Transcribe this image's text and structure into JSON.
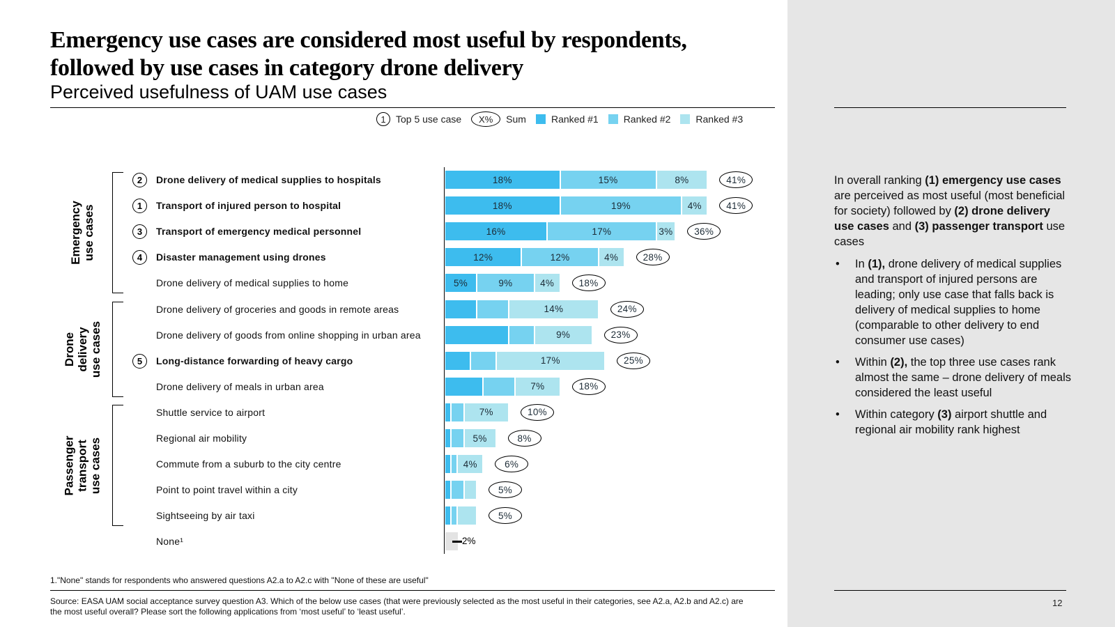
{
  "title": "Emergency use cases are considered most useful by respondents, followed by use cases in category drone delivery",
  "subtitle": "Perceived usefulness of UAM use cases",
  "legend": {
    "top5_symbol": "1",
    "top5_label": "Top 5 use case",
    "sum_symbol": "X%",
    "sum_label": "Sum",
    "ranked1": "Ranked #1",
    "ranked2": "Ranked #2",
    "ranked3": "Ranked #3"
  },
  "colors": {
    "ranked1": "#3dbcee",
    "ranked2": "#76d2f0",
    "ranked3": "#ade4ef",
    "none": "#e3e3e3",
    "right_panel": "#e6e6e6"
  },
  "groups": [
    {
      "label": "Emergency use cases",
      "lines": [
        "Emergency",
        "use cases"
      ]
    },
    {
      "label": "Drone delivery use cases",
      "lines": [
        "Drone",
        "delivery",
        "use cases"
      ]
    },
    {
      "label": "Passenger transport use cases",
      "lines": [
        "Passenger",
        "transport",
        "use cases"
      ]
    }
  ],
  "chart_data": {
    "type": "bar",
    "orientation": "horizontal",
    "stacked": true,
    "title": "Perceived usefulness of UAM use cases",
    "xlabel": "",
    "ylabel": "",
    "xlim": [
      0,
      45
    ],
    "grid": false,
    "legend_position": "top-right",
    "categories": [
      "Drone delivery of medical supplies to hospitals",
      "Transport of injured person to hospital",
      "Transport of emergency medical personnel",
      "Disaster management using drones",
      "Drone delivery of medical supplies to home",
      "Drone delivery of groceries and goods in remote areas",
      "Drone delivery of goods from online shopping in urban area",
      "Long-distance forwarding of heavy cargo",
      "Drone delivery of meals in urban area",
      "Shuttle service to airport",
      "Regional air mobility",
      "Commute from a suburb to the city centre",
      "Point to point travel within a city",
      "Sightseeing by air taxi",
      "None¹"
    ],
    "category_group": [
      0,
      0,
      0,
      0,
      0,
      1,
      1,
      1,
      1,
      2,
      2,
      2,
      2,
      2,
      null
    ],
    "top5_rank": [
      2,
      1,
      3,
      4,
      null,
      null,
      null,
      5,
      null,
      null,
      null,
      null,
      null,
      null,
      null
    ],
    "series": [
      {
        "name": "Ranked #1",
        "values": [
          18,
          18,
          16,
          12,
          5,
          5,
          10,
          4,
          6,
          1,
          1,
          1,
          1,
          1,
          null
        ],
        "labels": [
          "18%",
          "18%",
          "16%",
          "12%",
          "5%",
          "",
          "",
          "",
          "",
          "",
          "",
          "",
          "",
          "",
          ""
        ]
      },
      {
        "name": "Ranked #2",
        "values": [
          15,
          19,
          17,
          12,
          9,
          5,
          4,
          4,
          5,
          2,
          2,
          1,
          2,
          1,
          null
        ],
        "labels": [
          "15%",
          "19%",
          "17%",
          "12%",
          "9%",
          "",
          "",
          "",
          "",
          "",
          "",
          "",
          "",
          "",
          ""
        ]
      },
      {
        "name": "Ranked #3",
        "values": [
          8,
          4,
          3,
          4,
          4,
          14,
          9,
          17,
          7,
          7,
          5,
          4,
          2,
          3,
          null
        ],
        "labels": [
          "8%",
          "4%",
          "3%",
          "4%",
          "4%",
          "14%",
          "9%",
          "17%",
          "7%",
          "7%",
          "5%",
          "4%",
          "",
          "",
          ""
        ]
      }
    ],
    "sums": [
      "41%",
      "41%",
      "36%",
      "28%",
      "18%",
      "24%",
      "23%",
      "25%",
      "18%",
      "10%",
      "8%",
      "6%",
      "5%",
      "5%",
      null
    ],
    "none_value": 2,
    "none_label": "2%"
  },
  "footnote": "1.\"None\" stands for respondents who answered questions A2.a to A2.c with \"None of these are useful\"",
  "source": "Source: EASA UAM social acceptance survey question A3. Which of the below use cases (that were previously selected as the most useful in their categories, see A2.a, A2.b and A2.c) are the most useful overall? Please sort the following applications from ‘most useful’ to ‘least useful’.",
  "right_panel": {
    "intro": [
      {
        "t": "In overall ranking ",
        "b": false
      },
      {
        "t": "(1) emergency use cases",
        "b": true
      },
      {
        "t": " are perceived as most useful (most beneficial for society) followed by ",
        "b": false
      },
      {
        "t": "(2) drone delivery use cases",
        "b": true
      },
      {
        "t": " and ",
        "b": false
      },
      {
        "t": "(3) passenger transport",
        "b": true
      },
      {
        "t": " use cases",
        "b": false
      }
    ],
    "bullets": [
      [
        {
          "t": "In ",
          "b": false
        },
        {
          "t": "(1),",
          "b": true
        },
        {
          "t": " drone delivery of medical supplies and transport of injured persons are leading; only use case that falls back is delivery of medical supplies to home (comparable to other delivery to end consumer use cases)",
          "b": false
        }
      ],
      [
        {
          "t": "Within ",
          "b": false
        },
        {
          "t": "(2),",
          "b": true
        },
        {
          "t": " the top three use cases rank almost the same – drone delivery of meals considered the least useful",
          "b": false
        }
      ],
      [
        {
          "t": "Within category ",
          "b": false
        },
        {
          "t": "(3)",
          "b": true
        },
        {
          "t": " airport shuttle and regional air mobility rank highest",
          "b": false
        }
      ]
    ],
    "bullet_symbol": "•"
  },
  "page_number": "12"
}
